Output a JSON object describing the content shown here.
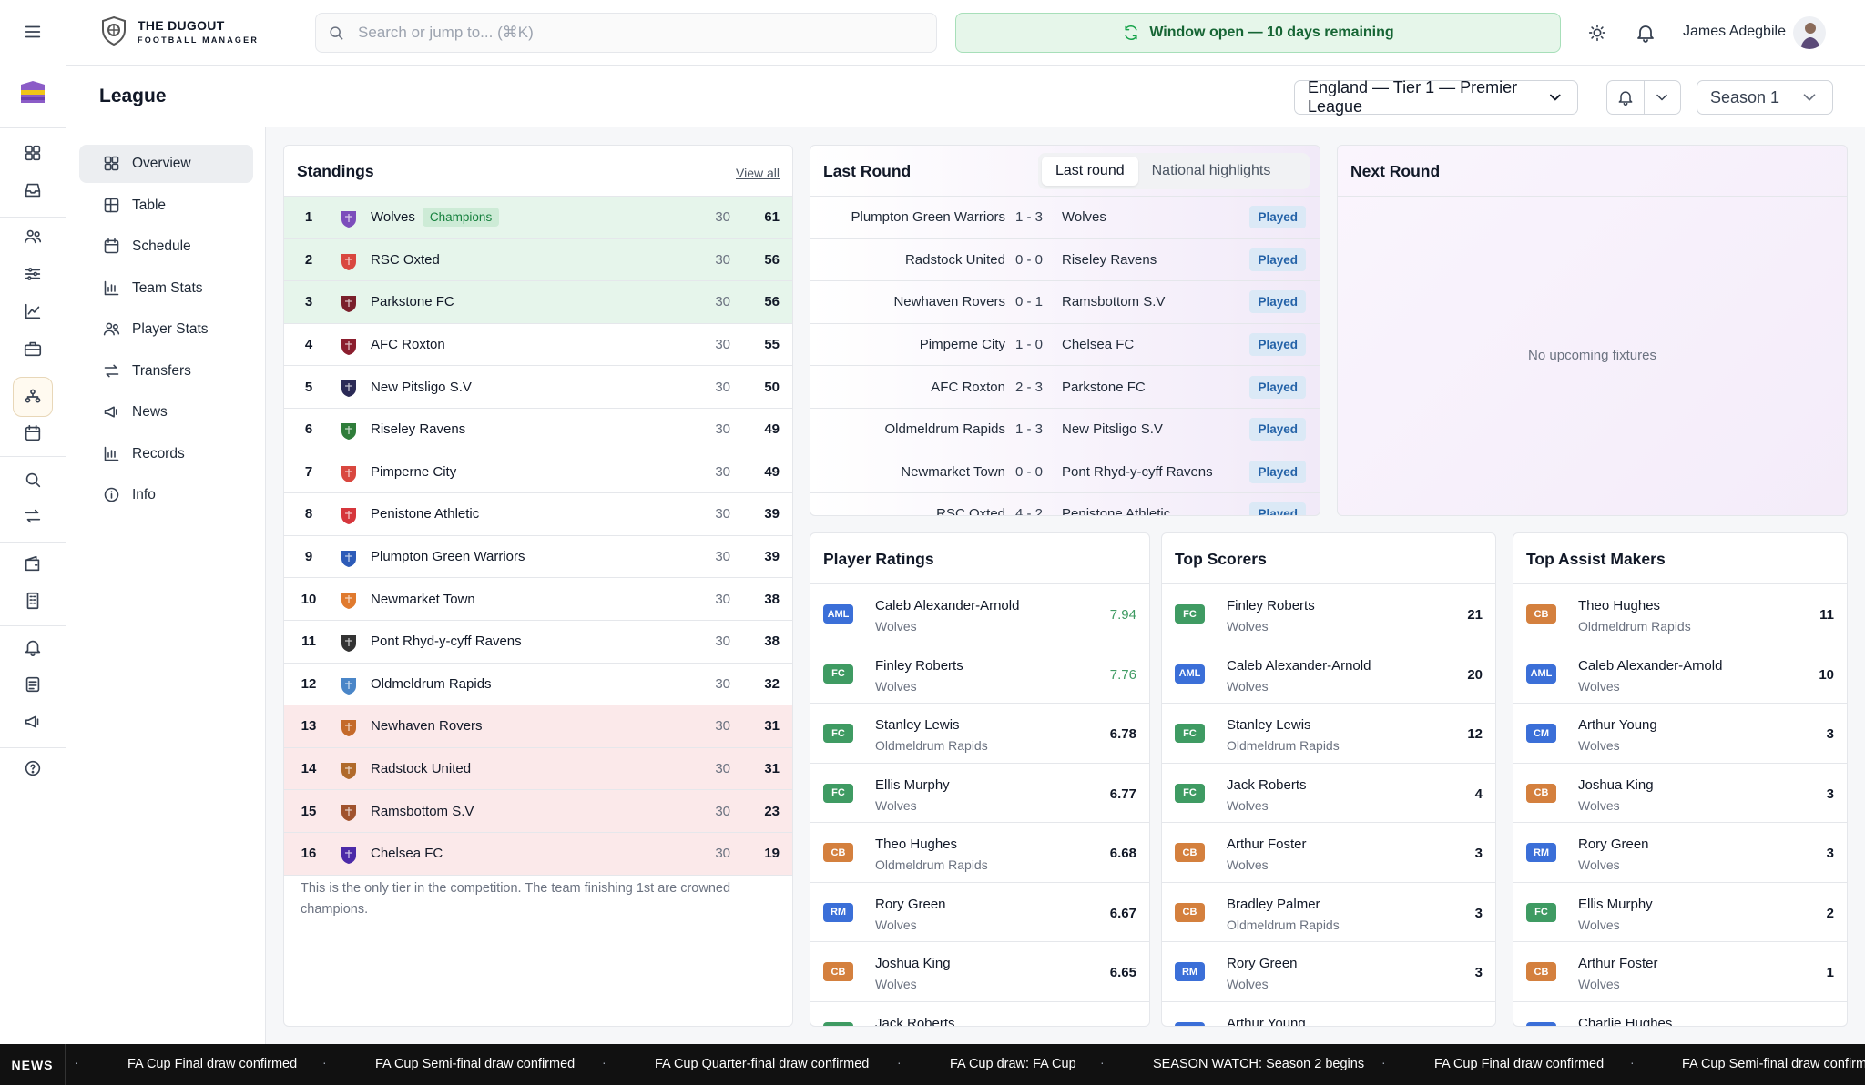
{
  "app": {
    "brand_line1": "THE DUGOUT",
    "brand_line2": "FOOTBALL MANAGER",
    "search_placeholder": "Search or jump to... (⌘K)",
    "window_status": "Window open — 10 days remaining",
    "user_name": "James Adegbile"
  },
  "page": {
    "title": "League",
    "league_selected": "England — Tier 1 — Premier League",
    "season_selected": "Season 1"
  },
  "sidenav": [
    "Overview",
    "Table",
    "Schedule",
    "Team Stats",
    "Player Stats",
    "Transfers",
    "News",
    "Records",
    "Info"
  ],
  "standings": {
    "title": "Standings",
    "view_all": "View all",
    "champions_badge": "Champions",
    "note": "This is the only tier in the competition. The team finishing 1st are crowned champions.",
    "rows": [
      {
        "pos": "1",
        "team": "Wolves",
        "pl": "30",
        "pts": "61",
        "zone": "promo",
        "crest": "#7c4dbb"
      },
      {
        "pos": "2",
        "team": "RSC Oxted",
        "pl": "30",
        "pts": "56",
        "zone": "promo",
        "crest": "#d9473f"
      },
      {
        "pos": "3",
        "team": "Parkstone FC",
        "pl": "30",
        "pts": "56",
        "zone": "promo",
        "crest": "#7a1f2b"
      },
      {
        "pos": "4",
        "team": "AFC Roxton",
        "pl": "30",
        "pts": "55",
        "zone": "",
        "crest": "#8b1e2e"
      },
      {
        "pos": "5",
        "team": "New Pitsligo S.V",
        "pl": "30",
        "pts": "50",
        "zone": "",
        "crest": "#2b2a56"
      },
      {
        "pos": "6",
        "team": "Riseley Ravens",
        "pl": "30",
        "pts": "49",
        "zone": "",
        "crest": "#2f7d3a"
      },
      {
        "pos": "7",
        "team": "Pimperne City",
        "pl": "30",
        "pts": "49",
        "zone": "",
        "crest": "#d9473f"
      },
      {
        "pos": "8",
        "team": "Penistone Athletic",
        "pl": "30",
        "pts": "39",
        "zone": "",
        "crest": "#d6363c"
      },
      {
        "pos": "9",
        "team": "Plumpton Green Warriors",
        "pl": "30",
        "pts": "39",
        "zone": "",
        "crest": "#2d5bb8"
      },
      {
        "pos": "10",
        "team": "Newmarket Town",
        "pl": "30",
        "pts": "38",
        "zone": "",
        "crest": "#e07a2e"
      },
      {
        "pos": "11",
        "team": "Pont Rhyd-y-cyff Ravens",
        "pl": "30",
        "pts": "38",
        "zone": "",
        "crest": "#333333"
      },
      {
        "pos": "12",
        "team": "Oldmeldrum Rapids",
        "pl": "30",
        "pts": "32",
        "zone": "",
        "crest": "#4a86c8"
      },
      {
        "pos": "13",
        "team": "Newhaven Rovers",
        "pl": "30",
        "pts": "31",
        "zone": "releg",
        "crest": "#c46a2a"
      },
      {
        "pos": "14",
        "team": "Radstock United",
        "pl": "30",
        "pts": "31",
        "zone": "releg",
        "crest": "#b06a2b"
      },
      {
        "pos": "15",
        "team": "Ramsbottom S.V",
        "pl": "30",
        "pts": "23",
        "zone": "releg",
        "crest": "#a0522d"
      },
      {
        "pos": "16",
        "team": "Chelsea FC",
        "pl": "30",
        "pts": "19",
        "zone": "releg",
        "crest": "#4b2aa8"
      }
    ]
  },
  "last_round": {
    "title": "Last Round",
    "tabs": [
      "Last round",
      "National highlights"
    ],
    "matches": [
      {
        "home": "Plumpton Green Warriors",
        "score": "1 - 3",
        "away": "Wolves",
        "status": "Played"
      },
      {
        "home": "Radstock United",
        "score": "0 - 0",
        "away": "Riseley Ravens",
        "status": "Played"
      },
      {
        "home": "Newhaven Rovers",
        "score": "0 - 1",
        "away": "Ramsbottom S.V",
        "status": "Played"
      },
      {
        "home": "Pimperne City",
        "score": "1 - 0",
        "away": "Chelsea FC",
        "status": "Played"
      },
      {
        "home": "AFC Roxton",
        "score": "2 - 3",
        "away": "Parkstone FC",
        "status": "Played"
      },
      {
        "home": "Oldmeldrum Rapids",
        "score": "1 - 3",
        "away": "New Pitsligo S.V",
        "status": "Played"
      },
      {
        "home": "Newmarket Town",
        "score": "0 - 0",
        "away": "Pont Rhyd-y-cyff Ravens",
        "status": "Played"
      },
      {
        "home": "RSC Oxted",
        "score": "4 - 2",
        "away": "Penistone Athletic",
        "status": "Played"
      }
    ]
  },
  "next_round": {
    "title": "Next Round",
    "empty": "No upcoming fixtures"
  },
  "player_ratings": {
    "title": "Player Ratings",
    "rows": [
      {
        "pos": "AML",
        "name": "Caleb Alexander-Arnold",
        "team": "Wolves",
        "value": "7.94",
        "green": true
      },
      {
        "pos": "FC",
        "name": "Finley Roberts",
        "team": "Wolves",
        "value": "7.76",
        "green": true
      },
      {
        "pos": "FC",
        "name": "Stanley Lewis",
        "team": "Oldmeldrum Rapids",
        "value": "6.78",
        "green": false
      },
      {
        "pos": "FC",
        "name": "Ellis Murphy",
        "team": "Wolves",
        "value": "6.77",
        "green": false
      },
      {
        "pos": "CB",
        "name": "Theo Hughes",
        "team": "Oldmeldrum Rapids",
        "value": "6.68",
        "green": false
      },
      {
        "pos": "RM",
        "name": "Rory Green",
        "team": "Wolves",
        "value": "6.67",
        "green": false
      },
      {
        "pos": "CB",
        "name": "Joshua King",
        "team": "Wolves",
        "value": "6.65",
        "green": false
      },
      {
        "pos": "FC",
        "name": "Jack Roberts",
        "team": "",
        "value": "",
        "green": false
      }
    ]
  },
  "top_scorers": {
    "title": "Top Scorers",
    "rows": [
      {
        "pos": "FC",
        "name": "Finley Roberts",
        "team": "Wolves",
        "value": "21"
      },
      {
        "pos": "AML",
        "name": "Caleb Alexander-Arnold",
        "team": "Wolves",
        "value": "20"
      },
      {
        "pos": "FC",
        "name": "Stanley Lewis",
        "team": "Oldmeldrum Rapids",
        "value": "12"
      },
      {
        "pos": "FC",
        "name": "Jack Roberts",
        "team": "Wolves",
        "value": "4"
      },
      {
        "pos": "CB",
        "name": "Arthur Foster",
        "team": "Wolves",
        "value": "3"
      },
      {
        "pos": "CB",
        "name": "Bradley Palmer",
        "team": "Oldmeldrum Rapids",
        "value": "3"
      },
      {
        "pos": "RM",
        "name": "Rory Green",
        "team": "Wolves",
        "value": "3"
      },
      {
        "pos": "CM",
        "name": "Arthur Young",
        "team": "",
        "value": ""
      }
    ]
  },
  "top_assists": {
    "title": "Top Assist Makers",
    "rows": [
      {
        "pos": "CB",
        "name": "Theo Hughes",
        "team": "Oldmeldrum Rapids",
        "value": "11"
      },
      {
        "pos": "AML",
        "name": "Caleb Alexander-Arnold",
        "team": "Wolves",
        "value": "10"
      },
      {
        "pos": "CM",
        "name": "Arthur Young",
        "team": "Wolves",
        "value": "3"
      },
      {
        "pos": "CB",
        "name": "Joshua King",
        "team": "Wolves",
        "value": "3"
      },
      {
        "pos": "RM",
        "name": "Rory Green",
        "team": "Wolves",
        "value": "3"
      },
      {
        "pos": "FC",
        "name": "Ellis Murphy",
        "team": "Wolves",
        "value": "2"
      },
      {
        "pos": "CB",
        "name": "Arthur Foster",
        "team": "Wolves",
        "value": "1"
      },
      {
        "pos": "AML",
        "name": "Charlie Hughes",
        "team": "",
        "value": ""
      }
    ]
  },
  "ticker": {
    "label": "NEWS",
    "items": [
      "FA Cup Final draw confirmed",
      "FA Cup Semi-final draw confirmed",
      "FA Cup Quarter-final draw confirmed",
      "FA Cup draw: FA Cup",
      "SEASON WATCH: Season 2 begins",
      "FA Cup Final draw confirmed",
      "FA Cup Semi-final draw confirmed"
    ]
  }
}
